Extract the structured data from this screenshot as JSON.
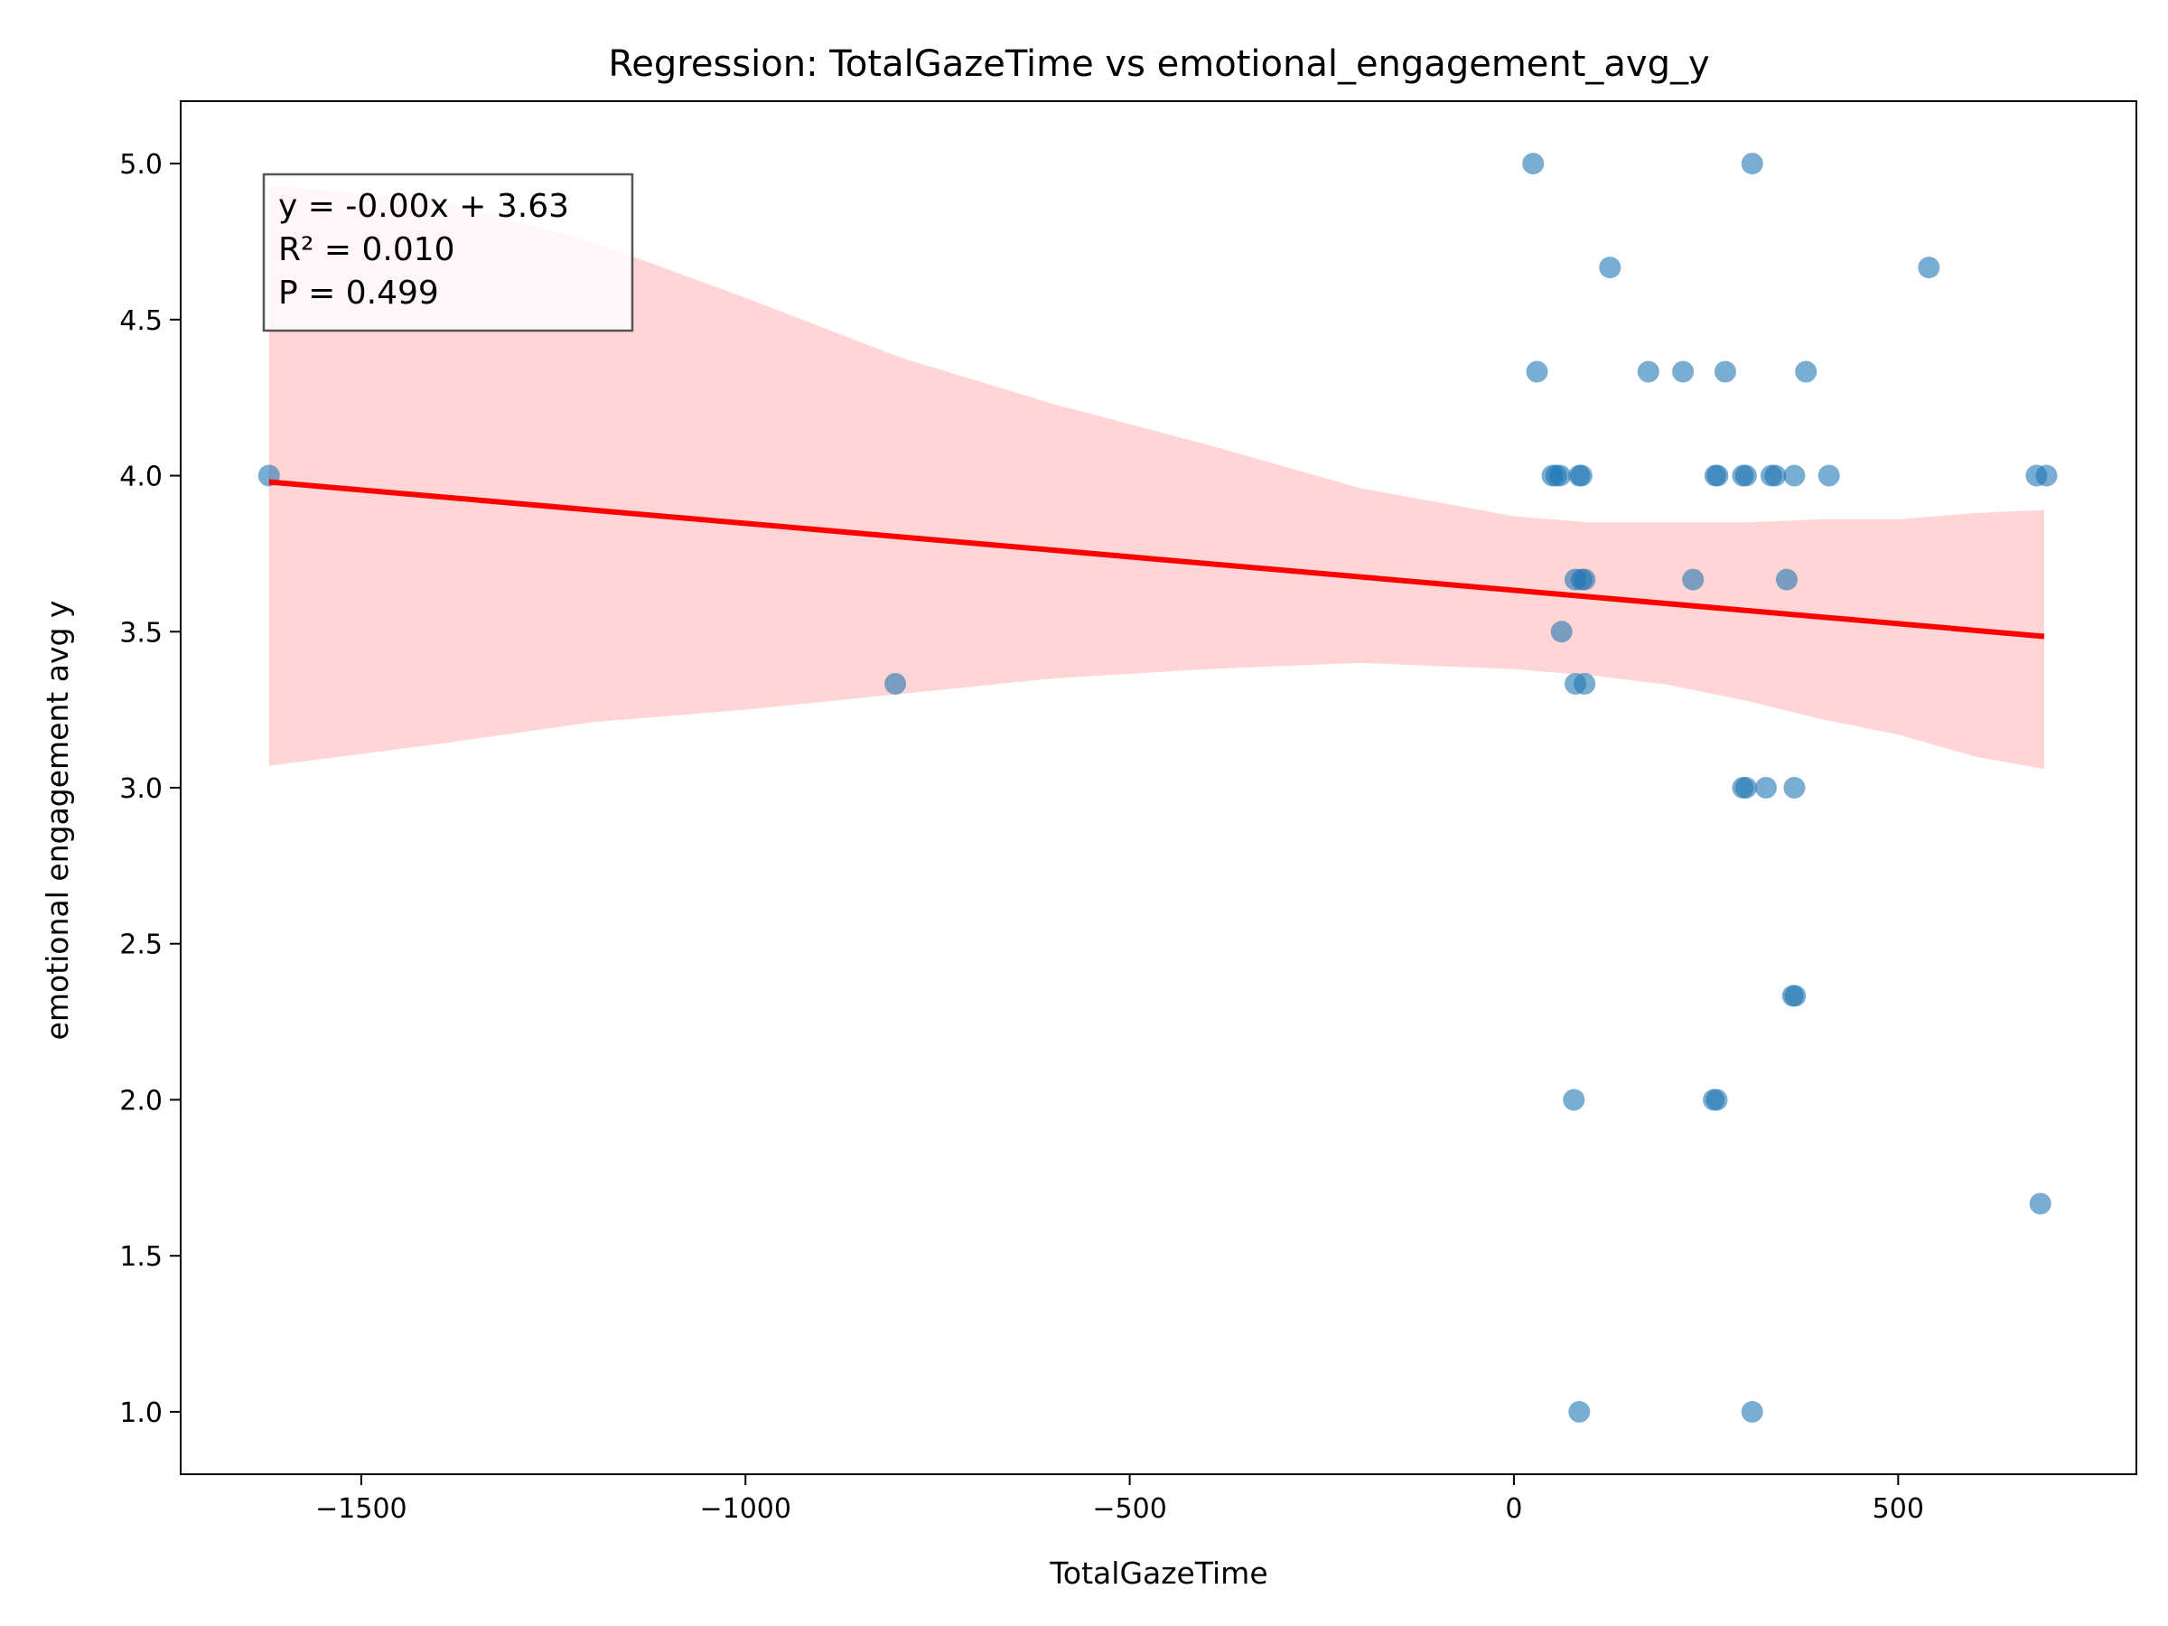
{
  "chart_data": {
    "type": "scatter",
    "title": "Regression: TotalGazeTime vs emotional_engagement_avg_y",
    "xlabel": "TotalGazeTime",
    "ylabel": "emotional engagement avg y",
    "xlim": [
      -1735,
      810
    ],
    "ylim": [
      0.8,
      5.2
    ],
    "xticks": [
      -1500,
      -1000,
      -500,
      0,
      500
    ],
    "xtick_labels": [
      "−1500",
      "−1000",
      "−500",
      "0",
      "500"
    ],
    "yticks": [
      1.0,
      1.5,
      2.0,
      2.5,
      3.0,
      3.5,
      4.0,
      4.5,
      5.0
    ],
    "ytick_labels": [
      "1.0",
      "1.5",
      "2.0",
      "2.5",
      "3.0",
      "3.5",
      "4.0",
      "4.5",
      "5.0"
    ],
    "grid": false,
    "colors": {
      "points": "#1f77b4",
      "regression_line": "#ff0000",
      "confidence_band": "#ffb3b3",
      "stats_box_border": "#555555"
    },
    "stats_box": {
      "line1": "y = -0.00x + 3.63",
      "line2": "R² = 0.010",
      "line3": "P = 0.499"
    },
    "regression_line": {
      "x": [
        -1620,
        690
      ],
      "y": [
        3.98,
        3.485
      ]
    },
    "confidence_band": {
      "x": [
        -1620,
        -1400,
        -1200,
        -1000,
        -800,
        -600,
        -400,
        -200,
        0,
        100,
        200,
        300,
        400,
        500,
        600,
        690
      ],
      "upper": [
        4.93,
        4.88,
        4.75,
        4.57,
        4.38,
        4.23,
        4.1,
        3.96,
        3.87,
        3.85,
        3.85,
        3.85,
        3.86,
        3.86,
        3.88,
        3.89
      ],
      "lower": [
        3.07,
        3.14,
        3.21,
        3.25,
        3.3,
        3.35,
        3.38,
        3.4,
        3.38,
        3.36,
        3.33,
        3.28,
        3.22,
        3.17,
        3.1,
        3.06
      ]
    },
    "series": [
      {
        "points": [
          [
            -1620,
            4.0
          ],
          [
            -805,
            3.333
          ],
          [
            25,
            5.0
          ],
          [
            310,
            5.0
          ],
          [
            125,
            4.667
          ],
          [
            540,
            4.667
          ],
          [
            30,
            4.333
          ],
          [
            175,
            4.333
          ],
          [
            220,
            4.333
          ],
          [
            275,
            4.333
          ],
          [
            380,
            4.333
          ],
          [
            50,
            4.0
          ],
          [
            55,
            4.0
          ],
          [
            60,
            4.0
          ],
          [
            85,
            4.0
          ],
          [
            88,
            4.0
          ],
          [
            262,
            4.0
          ],
          [
            265,
            4.0
          ],
          [
            298,
            4.0
          ],
          [
            302,
            4.0
          ],
          [
            335,
            4.0
          ],
          [
            340,
            4.0
          ],
          [
            365,
            4.0
          ],
          [
            410,
            4.0
          ],
          [
            680,
            4.0
          ],
          [
            693,
            4.0
          ],
          [
            80,
            3.667
          ],
          [
            88,
            3.667
          ],
          [
            92,
            3.667
          ],
          [
            233,
            3.667
          ],
          [
            355,
            3.667
          ],
          [
            62,
            3.5
          ],
          [
            80,
            3.333
          ],
          [
            92,
            3.333
          ],
          [
            298,
            3.0
          ],
          [
            302,
            3.0
          ],
          [
            328,
            3.0
          ],
          [
            365,
            3.0
          ],
          [
            363,
            2.333
          ],
          [
            366,
            2.333
          ],
          [
            78,
            2.0
          ],
          [
            260,
            2.0
          ],
          [
            264,
            2.0
          ],
          [
            685,
            1.667
          ],
          [
            85,
            1.0
          ],
          [
            310,
            1.0
          ]
        ]
      }
    ]
  }
}
